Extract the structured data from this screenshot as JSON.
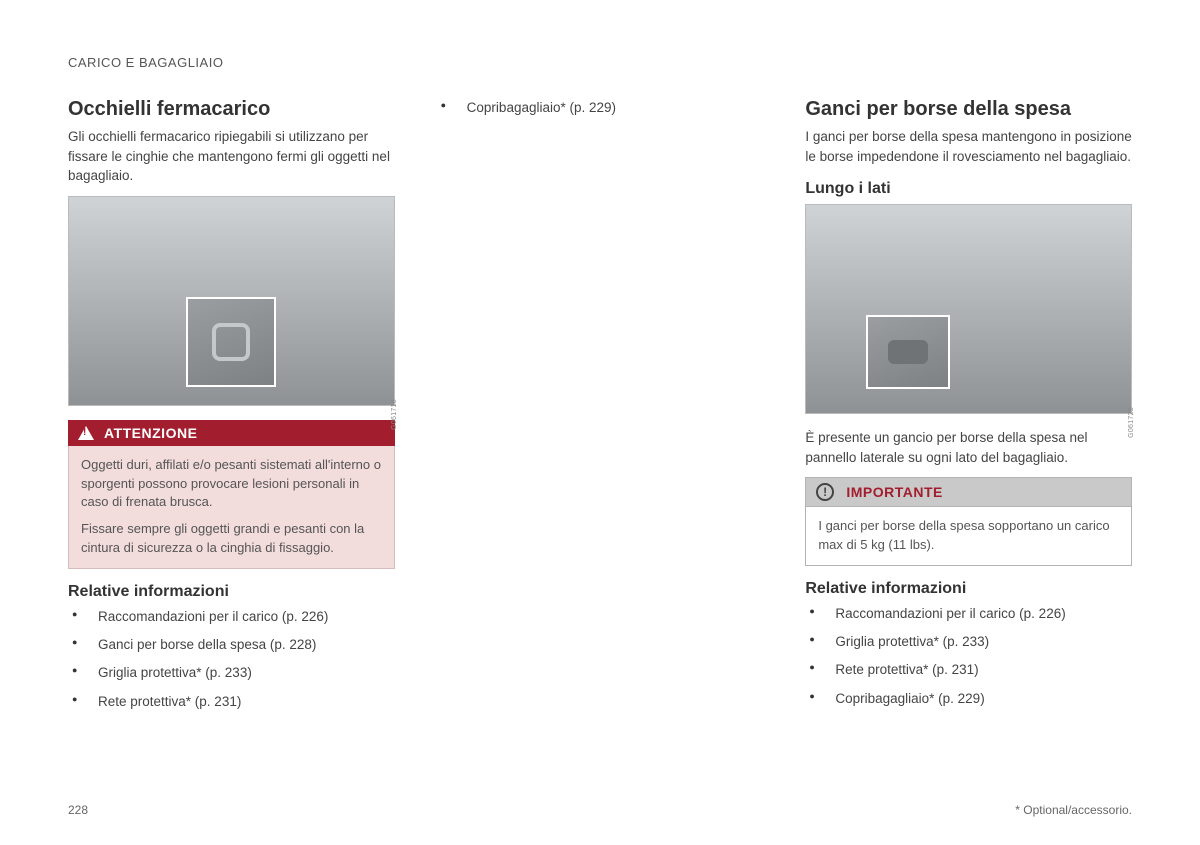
{
  "header": "CARICO E BAGAGLIAIO",
  "page_number": "228",
  "footnote": "* Optional/accessorio.",
  "col1": {
    "title": "Occhielli fermacarico",
    "intro": "Gli occhielli fermacarico ripiegabili si utilizzano per fissare le cinghie che mantengono fermi gli oggetti nel bagagliaio.",
    "figure_id": "G061716",
    "warning_label": "ATTENZIONE",
    "warning_p1": "Oggetti duri, affilati e/o pesanti sistemati all'interno o sporgenti possono provocare lesioni personali in caso di frenata brusca.",
    "warning_p2": "Fissare sempre gli oggetti grandi e pesanti con la cintura di sicurezza o la cinghia di fissaggio.",
    "related_title": "Relative informazioni",
    "related": [
      "Raccomandazioni per il carico (p. 226)",
      "Ganci per borse della spesa (p. 228)",
      "Griglia protettiva* (p. 233)",
      "Rete protettiva* (p. 231)"
    ]
  },
  "col2": {
    "bullet": "Copribagagliaio* (p. 229)"
  },
  "col3": {
    "title": "Ganci per borse della spesa",
    "intro": "I ganci per borse della spesa mantengono in posizione le borse impedendone il rovesciamento nel bagagliaio.",
    "subtitle": "Lungo i lati",
    "figure_id": "G061725",
    "caption": "È presente un gancio per borse della spesa nel pannello laterale su ogni lato del bagagliaio.",
    "important_label": "IMPORTANTE",
    "important_body": "I ganci per borse della spesa sopportano un carico max di 5 kg (11 lbs).",
    "related_title": "Relative informazioni",
    "related": [
      "Raccomandazioni per il carico (p. 226)",
      "Griglia protettiva* (p. 233)",
      "Rete protettiva* (p. 231)",
      "Copribagagliaio* (p. 229)"
    ]
  },
  "colors": {
    "warn_header_bg": "#a21e2e",
    "warn_body_bg": "#f3dcdc",
    "imp_header_bg": "#c9c9c9",
    "imp_text": "#a21e2e"
  }
}
